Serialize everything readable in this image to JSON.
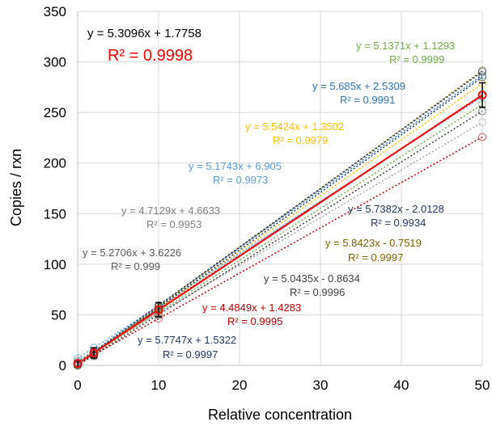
{
  "chart_data": {
    "type": "scatter",
    "title": "",
    "xlabel": "Relative concentration",
    "ylabel": "Copies / rxn",
    "xlim": [
      0,
      50
    ],
    "ylim": [
      0,
      350
    ],
    "x_ticks": [
      "0",
      "10",
      "20",
      "30",
      "40",
      "50"
    ],
    "y_ticks": [
      "0",
      "50",
      "100",
      "150",
      "200",
      "250",
      "300",
      "350"
    ],
    "grid": true,
    "x_points": [
      0,
      2,
      10,
      50
    ],
    "series": [
      {
        "equation": "y = 5.1371x + 1.1293",
        "r2": "R² = 0.9999",
        "color": "#70ad47",
        "slope": 5.1371,
        "intercept": 1.1293,
        "values": [
          1.1,
          11.4,
          52.5,
          258.0
        ]
      },
      {
        "equation": "y = 5.685x + 2.5309",
        "r2": "R² = 0.9991",
        "color": "#2e75b6",
        "slope": 5.685,
        "intercept": 2.5309,
        "values": [
          2.5,
          13.9,
          59.4,
          286.8
        ]
      },
      {
        "equation": "y = 5.5424x + 1.3502",
        "r2": "R² = 0.9979",
        "color": "#ffc000",
        "slope": 5.5424,
        "intercept": 1.3502,
        "values": [
          1.4,
          12.4,
          56.8,
          278.5
        ]
      },
      {
        "equation": "y = 5.1743x + 6.905",
        "r2": "R² = 0.9973",
        "color": "#5b9bd5",
        "slope": 5.1743,
        "intercept": 6.905,
        "values": [
          6.9,
          17.3,
          58.6,
          265.6
        ]
      },
      {
        "equation": "y = 4.7129x + 4.6633",
        "r2": "R² = 0.9953",
        "color": "#a5a5a5",
        "slope": 4.7129,
        "intercept": 4.6633,
        "values": [
          4.7,
          14.1,
          51.8,
          240.3
        ]
      },
      {
        "equation": "y = 5.7382x - 2.0128",
        "r2": "R² = 0.9934",
        "color": "#203864",
        "slope": 5.7382,
        "intercept": -2.0128,
        "values": [
          0.0,
          9.5,
          55.4,
          284.9
        ]
      },
      {
        "equation": "y = 5.2706x + 3.6226",
        "r2": "R² = 0.999",
        "color": "#7f7f7f",
        "slope": 5.2706,
        "intercept": 3.6226,
        "values": [
          3.6,
          14.2,
          56.3,
          267.2
        ]
      },
      {
        "equation": "y = 5.8423x - 0.7519",
        "r2": "R² = 0.9997",
        "color": "#806000",
        "slope": 5.8423,
        "intercept": -0.7519,
        "values": [
          0.0,
          10.9,
          57.7,
          291.4
        ]
      },
      {
        "equation": "y = 5.0435x - 0.8634",
        "r2": "R² = 0.9996",
        "color": "#404040",
        "slope": 5.0435,
        "intercept": -0.8634,
        "values": [
          0.0,
          9.2,
          49.6,
          251.3
        ]
      },
      {
        "equation": "y = 4.4849x + 1.4283",
        "r2": "R² = 0.9995",
        "color": "#c00000",
        "slope": 4.4849,
        "intercept": 1.4283,
        "values": [
          1.4,
          10.4,
          46.3,
          225.7
        ]
      },
      {
        "equation": "y = 5.7747x + 1.5322",
        "r2": "R² = 0.9997",
        "color": "#1f3864",
        "slope": 5.7747,
        "intercept": 1.5322,
        "values": [
          1.5,
          13.1,
          59.3,
          290.3
        ]
      }
    ],
    "mean": {
      "equation": "y = 5.3096x + 1.7758",
      "r2": "R² = 0.9998",
      "color": "#ff0000",
      "slope": 5.3096,
      "intercept": 1.7758,
      "values": [
        1.8,
        12.4,
        54.9,
        267.3
      ],
      "error": [
        3,
        5,
        7,
        12
      ]
    }
  }
}
